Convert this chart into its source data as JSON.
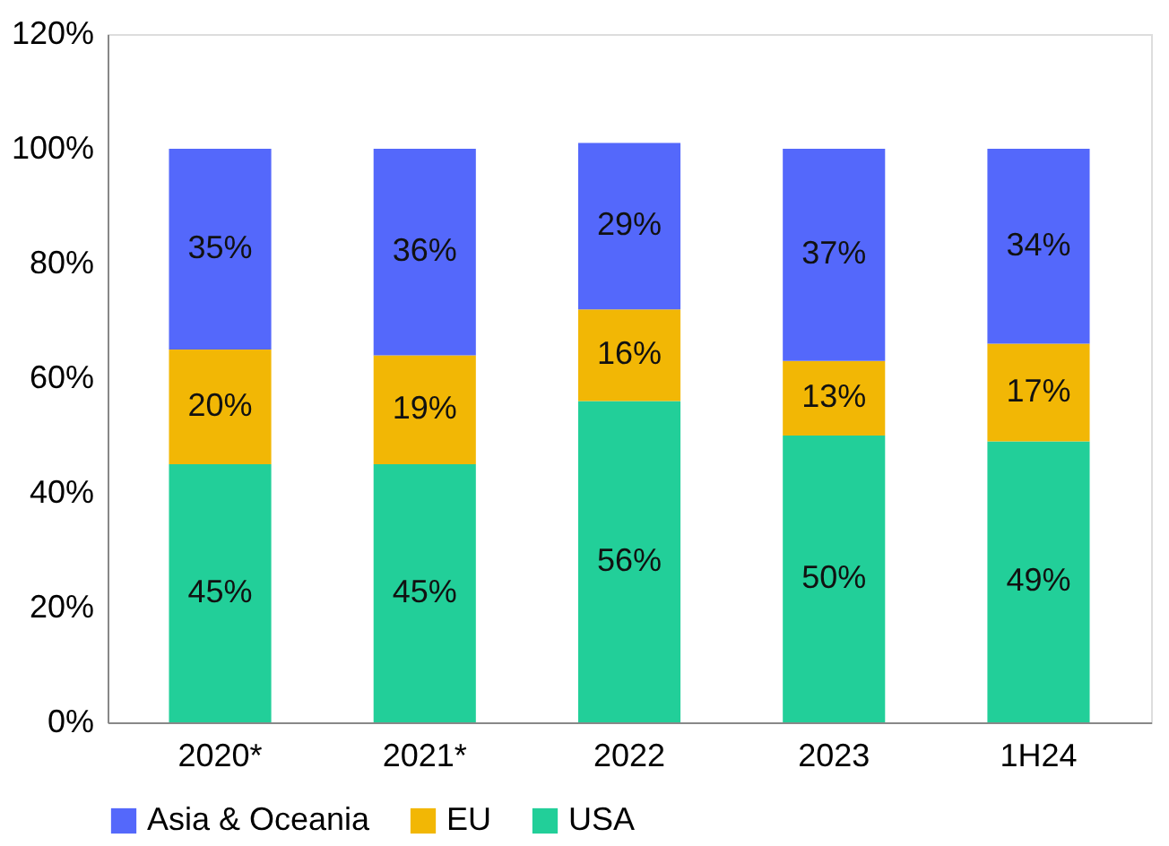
{
  "chart_data": {
    "type": "bar",
    "stacked": true,
    "categories": [
      "2020*",
      "2021*",
      "2022",
      "2023",
      "1H24"
    ],
    "series": [
      {
        "name": "USA",
        "color": "#22cf99",
        "values": [
          45,
          45,
          56,
          50,
          49
        ],
        "value_labels": [
          "45%",
          "45%",
          "56%",
          "50%",
          "49%"
        ]
      },
      {
        "name": "EU",
        "color": "#f2b705",
        "values": [
          20,
          19,
          16,
          13,
          17
        ],
        "value_labels": [
          "20%",
          "19%",
          "16%",
          "13%",
          "17%"
        ]
      },
      {
        "name": "Asia & Oceania",
        "color": "#5468fb",
        "values": [
          35,
          36,
          29,
          37,
          34
        ],
        "value_labels": [
          "35%",
          "36%",
          "29%",
          "37%",
          "34%"
        ]
      }
    ],
    "ylim": [
      0,
      120
    ],
    "yticks": [
      {
        "value": 0,
        "label": "0%"
      },
      {
        "value": 20,
        "label": "20%"
      },
      {
        "value": 40,
        "label": "40%"
      },
      {
        "value": 60,
        "label": "60%"
      },
      {
        "value": 80,
        "label": "80%"
      },
      {
        "value": 100,
        "label": "100%"
      },
      {
        "value": 120,
        "label": "120%"
      }
    ],
    "grid": false,
    "legend": "bottom"
  }
}
